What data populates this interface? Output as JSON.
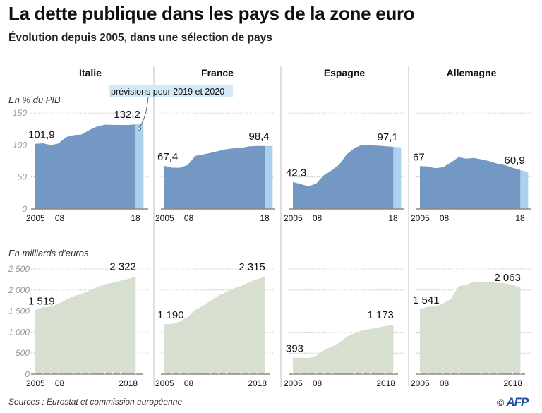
{
  "header": {
    "title": "La dette publique dans les pays de la zone euro",
    "subtitle": "Évolution depuis 2005, dans une sélection de pays"
  },
  "footer": {
    "sources": "Sources : Eurostat et commission européenne",
    "copyright": "©",
    "logo": "AFP"
  },
  "colors": {
    "pib_fill": "#7398c4",
    "forecast_fill": "#a9d2ee",
    "forecast_label_bg": "#d3e9f7",
    "euros_fill": "#d6dfd0",
    "gridline": "#bbbbbb",
    "axis": "#888888",
    "divider": "#cccccc"
  },
  "chart_data": [
    {
      "type": "area",
      "title": "En % du PIB",
      "ylabel": "En % du PIB",
      "ylim": [
        0,
        150
      ],
      "yticks": [
        0,
        50,
        100,
        150
      ],
      "grid": true,
      "x": [
        2005,
        2006,
        2007,
        2008,
        2009,
        2010,
        2011,
        2012,
        2013,
        2014,
        2015,
        2016,
        2017,
        2018
      ],
      "xtick_labels": [
        "2005",
        "08",
        "18"
      ],
      "forecast_label": "prévisions pour 2019 et 2020",
      "series": [
        {
          "name": "Italie",
          "values": [
            101.9,
            102.6,
            99.8,
            102.4,
            112.5,
            115.4,
            116.5,
            123.4,
            129.0,
            131.8,
            131.5,
            131.4,
            131.4,
            132.2
          ],
          "forecast": 133.7,
          "start_label": "101,9",
          "end_label": "132,2"
        },
        {
          "name": "France",
          "values": [
            67.4,
            64.6,
            64.5,
            68.8,
            83.0,
            85.3,
            87.8,
            90.6,
            93.4,
            94.9,
            95.6,
            98.0,
            98.4,
            98.4
          ],
          "forecast": 98.6,
          "start_label": "67,4",
          "end_label": "98,4"
        },
        {
          "name": "Espagne",
          "values": [
            42.3,
            38.9,
            35.6,
            39.5,
            52.8,
            60.1,
            69.5,
            85.7,
            95.5,
            100.4,
            99.3,
            99.0,
            98.1,
            97.1
          ],
          "forecast": 96.5,
          "start_label": "42,3",
          "end_label": "97,1"
        },
        {
          "name": "Allemagne",
          "values": [
            67.0,
            66.5,
            63.7,
            65.2,
            72.6,
            81.0,
            78.6,
            79.8,
            77.4,
            74.6,
            71.0,
            68.5,
            64.5,
            60.9
          ],
          "forecast": 58.0,
          "start_label": "67",
          "end_label": "60,9"
        }
      ]
    },
    {
      "type": "area",
      "title": "En milliards d’euros",
      "ylabel": "En milliards d’euros",
      "ylim": [
        0,
        2500
      ],
      "yticks": [
        0,
        500,
        1000,
        1500,
        2000,
        2500
      ],
      "ytick_labels": [
        "0",
        "500",
        "1 000",
        "1 500",
        "2 000",
        "2 500"
      ],
      "grid": true,
      "x": [
        2005,
        2006,
        2007,
        2008,
        2009,
        2010,
        2011,
        2012,
        2013,
        2014,
        2015,
        2016,
        2017,
        2018
      ],
      "xtick_labels": [
        "2005",
        "08",
        "2018"
      ],
      "series": [
        {
          "name": "Italie",
          "values": [
            1519,
            1589,
            1606,
            1671,
            1770,
            1852,
            1908,
            1990,
            2070,
            2137,
            2173,
            2219,
            2263,
            2322
          ],
          "start_label": "1 519",
          "end_label": "2 322"
        },
        {
          "name": "France",
          "values": [
            1190,
            1194,
            1253,
            1358,
            1527,
            1628,
            1751,
            1868,
            1953,
            2040,
            2101,
            2189,
            2258,
            2315
          ],
          "start_label": "1 190",
          "end_label": "2 315"
        },
        {
          "name": "Espagne",
          "values": [
            393,
            392,
            384,
            440,
            569,
            649,
            743,
            891,
            979,
            1041,
            1073,
            1104,
            1145,
            1173
          ],
          "start_label": "393",
          "end_label": "1 173"
        },
        {
          "name": "Allemagne",
          "values": [
            1541,
            1604,
            1608,
            1683,
            1788,
            2090,
            2125,
            2203,
            2192,
            2192,
            2172,
            2161,
            2120,
            2063
          ],
          "start_label": "1 541",
          "end_label": "2 063"
        }
      ]
    }
  ]
}
